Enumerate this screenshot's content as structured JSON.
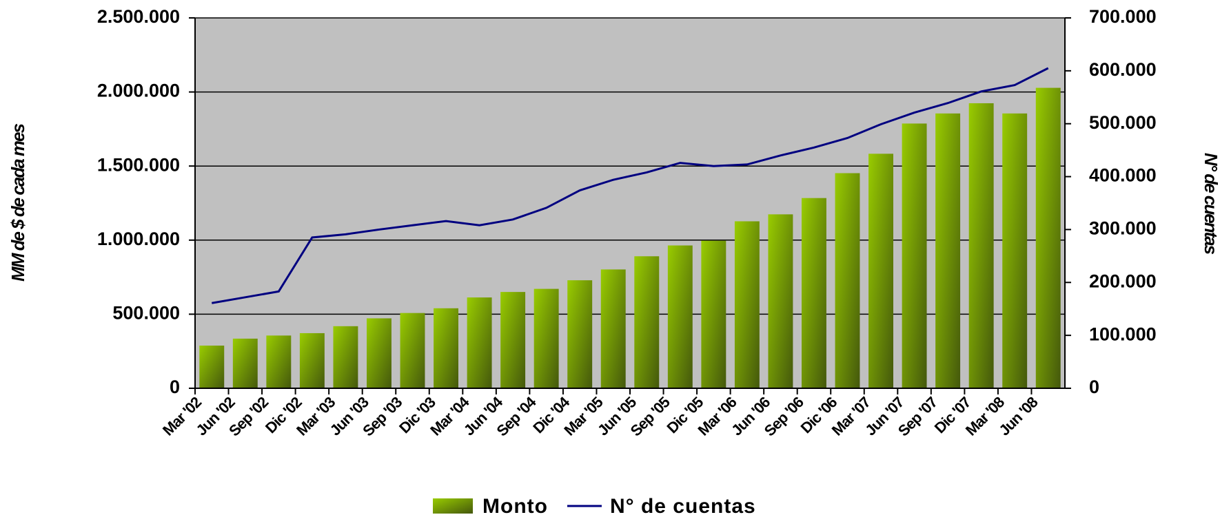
{
  "chart_data": {
    "type": "bar-line",
    "categories": [
      "Mar '02",
      "Jun '02",
      "Sep '02",
      "Dic '02",
      "Mar '03",
      "Jun '03",
      "Sep '03",
      "Dic '03",
      "Mar '04",
      "Jun '04",
      "Sep '04",
      "Dic '04",
      "Mar '05",
      "Jun '05",
      "Sep '05",
      "Dic '05",
      "Mar '06",
      "Jun '06",
      "Sep '06",
      "Dic '06",
      "Mar '07",
      "Jun '07",
      "Sep '07",
      "Dic '07",
      "Mar '08",
      "Jun '08"
    ],
    "series": [
      {
        "name": "Monto",
        "type": "bar",
        "color": "#99cc00",
        "values": [
          288000,
          335000,
          356000,
          372000,
          419000,
          472000,
          508000,
          540000,
          613000,
          650000,
          671000,
          729000,
          802000,
          891000,
          964000,
          996000,
          1127000,
          1174000,
          1284000,
          1452000,
          1583000,
          1787000,
          1855000,
          1924000,
          1855000,
          2028000
        ]
      },
      {
        "name": "N° de cuentas",
        "type": "line",
        "axis": "y2",
        "color": "#000080",
        "values": [
          161000,
          172000,
          183000,
          285000,
          291000,
          300000,
          308000,
          316000,
          308000,
          319000,
          341000,
          374000,
          394000,
          408000,
          426000,
          420000,
          423000,
          440000,
          455000,
          473000,
          499000,
          521000,
          539000,
          561000,
          573000,
          605000
        ]
      }
    ],
    "ylabel": "MM de $ de cada mes",
    "y2label": "N° de cuentas",
    "ylim": [
      0,
      2500000
    ],
    "yticks": [
      0,
      {
        "value": 500000,
        "label": "500.000"
      },
      {
        "value": 1000000,
        "label": "1.000.000"
      },
      {
        "value": 1500000,
        "label": "1.500.000"
      },
      {
        "value": 2000000,
        "label": "2.000.000"
      },
      {
        "value": 2500000,
        "label": "2.500.000"
      }
    ],
    "y2lim": [
      0,
      700000
    ],
    "y2ticks": [
      0,
      {
        "value": 100000,
        "label": "100.000"
      },
      {
        "value": 200000,
        "label": "200.000"
      },
      {
        "value": 300000,
        "label": "300.000"
      },
      {
        "value": 400000,
        "label": "400.000"
      },
      {
        "value": 500000,
        "label": "500.000"
      },
      {
        "value": 600000,
        "label": "600.000"
      },
      {
        "value": 700000,
        "label": "700.000"
      }
    ],
    "grid": true,
    "legend": "bottom"
  }
}
